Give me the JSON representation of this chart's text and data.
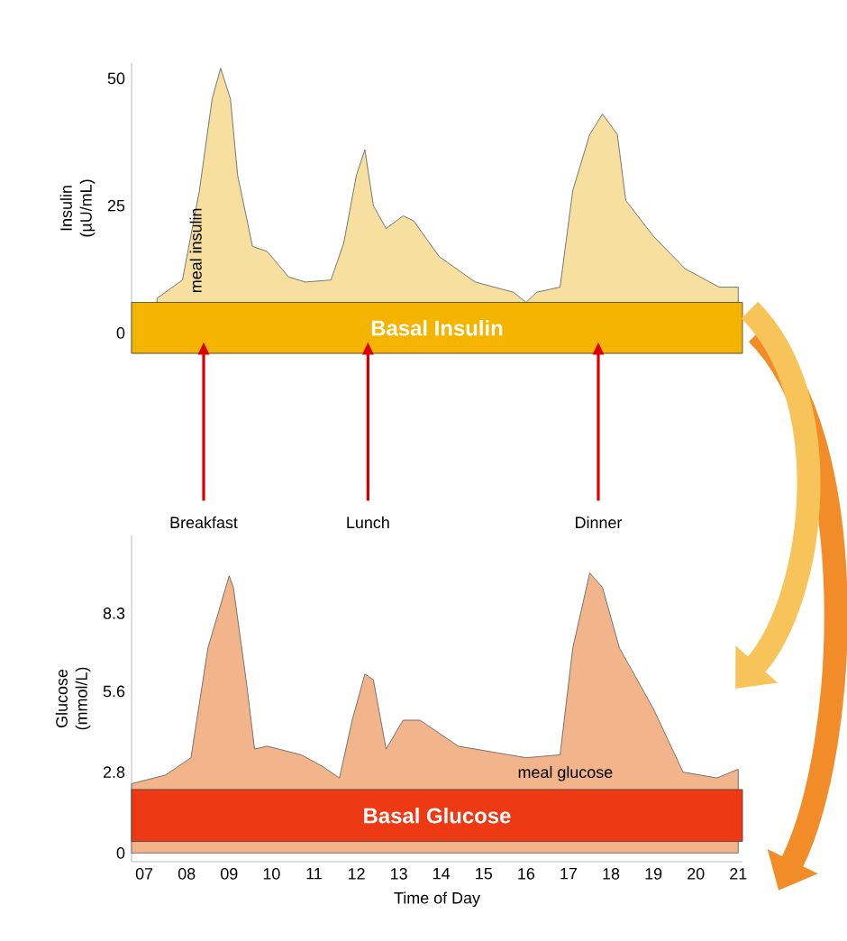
{
  "chart_data": [
    {
      "type": "area",
      "ylabel": "Insulin (µU/mL)",
      "xlim": [
        6.7,
        21.1
      ],
      "ylim": [
        -4,
        53
      ],
      "yticks": [
        0,
        25,
        50
      ],
      "tick_labels": "y",
      "series": [
        {
          "name": "meal insulin",
          "color": "#f7dfa0",
          "x": [
            7.3,
            7.9,
            8.3,
            8.6,
            8.8,
            9.03,
            9.2,
            9.55,
            9.9,
            10.4,
            10.8,
            11.4,
            11.7,
            12.0,
            12.2,
            12.4,
            12.7,
            13.1,
            13.35,
            13.95,
            14.8,
            15.7,
            16.0,
            16.25,
            16.8,
            17.1,
            17.5,
            17.8,
            18.15,
            18.35,
            19.0,
            19.75,
            20.55,
            21.0
          ],
          "values": [
            6.8,
            10.4,
            28,
            46,
            52,
            46,
            31,
            17,
            16,
            11,
            10,
            10.4,
            17.6,
            31,
            36,
            25,
            20.5,
            23,
            22,
            15,
            10,
            8,
            6,
            8,
            9,
            28,
            39,
            43,
            39,
            26,
            19,
            12.6,
            9,
            9
          ]
        }
      ],
      "bands": [
        {
          "axis": "y",
          "from": -4,
          "to": 6,
          "label": "Basal Insulin",
          "color": "#f5b400"
        }
      ]
    },
    {
      "type": "area",
      "ylabel": "Glucose (mmol/L)",
      "xlabel": "Time of Day",
      "xlim": [
        6.7,
        21.1
      ],
      "ylim": [
        -0.3,
        11
      ],
      "yticks": [
        0,
        2.8,
        5.6,
        8.3
      ],
      "xticks": [
        {
          "value": 7,
          "label": "07"
        },
        {
          "value": 8,
          "label": "08"
        },
        {
          "value": 9,
          "label": "09"
        },
        10,
        11,
        12,
        13,
        14,
        15,
        16,
        17,
        18,
        19,
        20,
        21
      ],
      "series": [
        {
          "name": "meal glucose",
          "color": "#f2b48a",
          "x": [
            6.7,
            7.5,
            8.1,
            8.5,
            9.0,
            9.1,
            9.4,
            9.6,
            9.9,
            10.7,
            11.2,
            11.6,
            11.9,
            12.2,
            12.4,
            12.7,
            13.1,
            13.5,
            14.4,
            15.2,
            16.0,
            16.8,
            17.1,
            17.5,
            17.8,
            18.2,
            19.0,
            19.7,
            20.5,
            21.0
          ],
          "values": [
            2.4,
            2.7,
            3.3,
            7.1,
            9.6,
            9.2,
            6.0,
            3.6,
            3.7,
            3.4,
            3.0,
            2.6,
            4.6,
            6.2,
            6.0,
            3.6,
            4.6,
            4.6,
            3.7,
            3.5,
            3.3,
            3.4,
            7.1,
            9.7,
            9.2,
            7.1,
            5.0,
            2.8,
            2.6,
            2.9
          ]
        }
      ],
      "bands": [
        {
          "axis": "y",
          "from": 0.4,
          "to": 2.2,
          "label": "Basal Glucose",
          "color": "#ee3a14"
        }
      ],
      "annotations": [
        "Breakfast",
        "Lunch",
        "Dinner"
      ]
    }
  ]
}
